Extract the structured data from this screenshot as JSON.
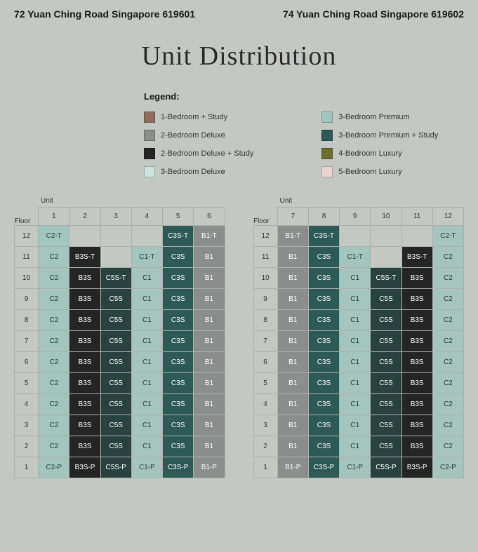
{
  "addresses": {
    "left": "72 Yuan Ching Road Singapore 619601",
    "right": "74 Yuan Ching Road Singapore 619602"
  },
  "title": "Unit Distribution",
  "legend": {
    "title": "Legend:",
    "items": [
      {
        "label": "1-Bedroom + Study",
        "color": "#8a6f5e"
      },
      {
        "label": "3-Bedroom Premium",
        "color": "#a3c5be"
      },
      {
        "label": "2-Bedroom Deluxe",
        "color": "#8a8f8d"
      },
      {
        "label": "3-Bedroom Premium + Study",
        "color": "#2d5a55"
      },
      {
        "label": "2-Bedroom Deluxe + Study",
        "color": "#252525"
      },
      {
        "label": "4-Bedroom Luxury",
        "color": "#6b6e2f"
      },
      {
        "label": "3-Bedroom Deluxe",
        "color": "#cde3dd"
      },
      {
        "label": "5-Bedroom Luxury",
        "color": "#e8d5d2"
      }
    ]
  },
  "colors": {
    "C2": "#a3c5be",
    "C2-T": "#a3c5be",
    "C2-P": "#a3c5be",
    "B3S": "#252525",
    "B3S-T": "#252525",
    "B3S-P": "#252525",
    "C5S": "#2a423f",
    "C5S-T": "#2a423f",
    "C5S-P": "#2a423f",
    "C1": "#a3c5be",
    "C1-T": "#a3c5be",
    "C1-P": "#a3c5be",
    "C3S": "#2d5a55",
    "C3S-T": "#2d5a55",
    "C3S-P": "#2d5a55",
    "B1": "#8a8f8d",
    "B1-T": "#8a8f8d",
    "B1-P": "#8a8f8d"
  },
  "textDark": [
    "C2",
    "C2-T",
    "C2-P",
    "C1",
    "C1-T",
    "C1-P"
  ],
  "tables": {
    "unitLabel": "Unit",
    "floorLabel": "Floor"
  },
  "leftTable": {
    "columns": [
      "1",
      "2",
      "3",
      "4",
      "5",
      "6"
    ],
    "rows": [
      {
        "floor": "12",
        "cells": [
          "C2-T",
          "",
          "",
          "",
          "C3S-T",
          "B1-T"
        ]
      },
      {
        "floor": "11",
        "cells": [
          "C2",
          "B3S-T",
          "",
          "C1-T",
          "C3S",
          "B1"
        ]
      },
      {
        "floor": "10",
        "cells": [
          "C2",
          "B3S",
          "C5S-T",
          "C1",
          "C3S",
          "B1"
        ]
      },
      {
        "floor": "9",
        "cells": [
          "C2",
          "B3S",
          "C5S",
          "C1",
          "C3S",
          "B1"
        ]
      },
      {
        "floor": "8",
        "cells": [
          "C2",
          "B3S",
          "C5S",
          "C1",
          "C3S",
          "B1"
        ]
      },
      {
        "floor": "7",
        "cells": [
          "C2",
          "B3S",
          "C5S",
          "C1",
          "C3S",
          "B1"
        ]
      },
      {
        "floor": "6",
        "cells": [
          "C2",
          "B3S",
          "C5S",
          "C1",
          "C3S",
          "B1"
        ]
      },
      {
        "floor": "5",
        "cells": [
          "C2",
          "B3S",
          "C5S",
          "C1",
          "C3S",
          "B1"
        ]
      },
      {
        "floor": "4",
        "cells": [
          "C2",
          "B3S",
          "C5S",
          "C1",
          "C3S",
          "B1"
        ]
      },
      {
        "floor": "3",
        "cells": [
          "C2",
          "B3S",
          "C5S",
          "C1",
          "C3S",
          "B1"
        ]
      },
      {
        "floor": "2",
        "cells": [
          "C2",
          "B3S",
          "C5S",
          "C1",
          "C3S",
          "B1"
        ]
      },
      {
        "floor": "1",
        "cells": [
          "C2-P",
          "B3S-P",
          "C5S-P",
          "C1-P",
          "C3S-P",
          "B1-P"
        ]
      }
    ]
  },
  "rightTable": {
    "columns": [
      "7",
      "8",
      "9",
      "10",
      "11",
      "12"
    ],
    "rows": [
      {
        "floor": "12",
        "cells": [
          "B1-T",
          "C3S-T",
          "",
          "",
          "",
          "C2-T"
        ]
      },
      {
        "floor": "11",
        "cells": [
          "B1",
          "C3S",
          "C1-T",
          "",
          "B3S-T",
          "C2"
        ]
      },
      {
        "floor": "10",
        "cells": [
          "B1",
          "C3S",
          "C1",
          "C5S-T",
          "B3S",
          "C2"
        ]
      },
      {
        "floor": "9",
        "cells": [
          "B1",
          "C3S",
          "C1",
          "C5S",
          "B3S",
          "C2"
        ]
      },
      {
        "floor": "8",
        "cells": [
          "B1",
          "C3S",
          "C1",
          "C5S",
          "B3S",
          "C2"
        ]
      },
      {
        "floor": "7",
        "cells": [
          "B1",
          "C3S",
          "C1",
          "C5S",
          "B3S",
          "C2"
        ]
      },
      {
        "floor": "6",
        "cells": [
          "B1",
          "C3S",
          "C1",
          "C5S",
          "B3S",
          "C2"
        ]
      },
      {
        "floor": "5",
        "cells": [
          "B1",
          "C3S",
          "C1",
          "C5S",
          "B3S",
          "C2"
        ]
      },
      {
        "floor": "4",
        "cells": [
          "B1",
          "C3S",
          "C1",
          "C5S",
          "B3S",
          "C2"
        ]
      },
      {
        "floor": "3",
        "cells": [
          "B1",
          "C3S",
          "C1",
          "C5S",
          "B3S",
          "C2"
        ]
      },
      {
        "floor": "2",
        "cells": [
          "B1",
          "C3S",
          "C1",
          "C5S",
          "B3S",
          "C2"
        ]
      },
      {
        "floor": "1",
        "cells": [
          "B1-P",
          "C3S-P",
          "C1-P",
          "C5S-P",
          "B3S-P",
          "C2-P"
        ]
      }
    ]
  }
}
